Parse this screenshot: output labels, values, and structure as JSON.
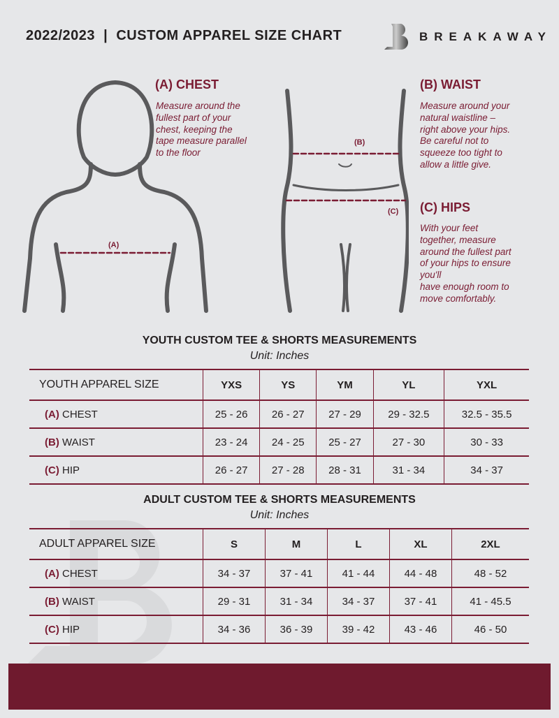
{
  "header": {
    "title": "2022/2023  |  CUSTOM APPAREL SIZE CHART",
    "brand": "BREAKAWAY",
    "logo_letter": "B"
  },
  "colors": {
    "accent": "#7a1c33",
    "background": "#e6e7e9",
    "footer": "#6f1a2e"
  },
  "chest": {
    "heading": "(A) CHEST",
    "text": [
      "Measure around the",
      "fullest part of your",
      "chest, keeping the",
      "tape measure parallel",
      "to the floor"
    ],
    "tag": "(A)"
  },
  "waist": {
    "heading": "(B) WAIST",
    "text": [
      "Measure around your",
      "natural waistline –",
      "right above your hips.",
      "Be careful not to",
      "squeeze too tight to",
      "allow a little give."
    ],
    "tag": "(B)"
  },
  "hips": {
    "heading": "(C) HIPS",
    "text": [
      "With your feet",
      "together, measure",
      "around the fullest part",
      "of your hips to ensure",
      "you'll",
      "have enough room to",
      "move comfortably."
    ],
    "tag": "(C)"
  },
  "youth": {
    "title": "YOUTH CUSTOM TEE & SHORTS MEASUREMENTS",
    "unit": "Unit: Inches",
    "header": [
      "YOUTH APPAREL SIZE",
      "YXS",
      "YS",
      "YM",
      "YL",
      "YXL"
    ],
    "rows": [
      {
        "letter": "(A)",
        "label": "CHEST",
        "values": [
          "25 - 26",
          "26 - 27",
          "27 - 29",
          "29 - 32.5",
          "32.5 - 35.5"
        ]
      },
      {
        "letter": "(B)",
        "label": "WAIST",
        "values": [
          "23 - 24",
          "24 - 25",
          "25 - 27",
          "27 - 30",
          "30 - 33"
        ]
      },
      {
        "letter": "(C)",
        "label": "HIP",
        "values": [
          "26 - 27",
          "27 - 28",
          "28 - 31",
          "31 - 34",
          "34 - 37"
        ]
      }
    ]
  },
  "adult": {
    "title": "ADULT CUSTOM TEE & SHORTS MEASUREMENTS",
    "unit": "Unit: Inches",
    "header": [
      "ADULT APPAREL SIZE",
      "S",
      "M",
      "L",
      "XL",
      "2XL"
    ],
    "rows": [
      {
        "letter": "(A)",
        "label": "CHEST",
        "values": [
          "34 - 37",
          "37 - 41",
          "41 - 44",
          "44 - 48",
          "48 - 52"
        ]
      },
      {
        "letter": "(B)",
        "label": "WAIST",
        "values": [
          "29 - 31",
          "31 - 34",
          "34 - 37",
          "37 - 41",
          "41 - 45.5"
        ]
      },
      {
        "letter": "(C)",
        "label": "HIP",
        "values": [
          "34 - 36",
          "36 - 39",
          "39 - 42",
          "43 - 46",
          "46 - 50"
        ]
      }
    ]
  }
}
